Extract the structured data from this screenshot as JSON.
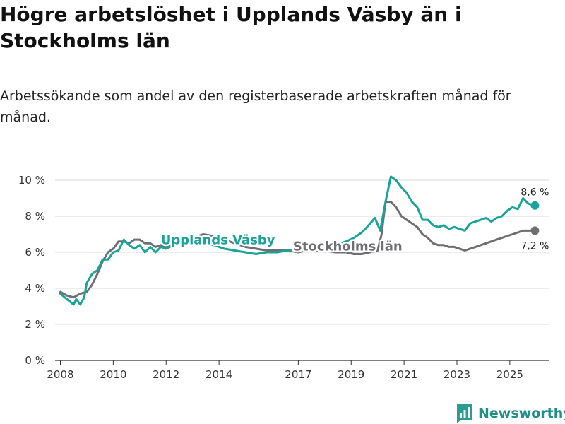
{
  "title": "Högre arbetslöshet i Upplands Väsby än i Stockholms län",
  "subtitle": "Arbetssökande som andel av den registerbaserade arbetskraften månad för månad.",
  "brand": {
    "name": "Newsworthy",
    "icon": "newsworthy-logo-icon",
    "color": "#2a9d92"
  },
  "chart_data": {
    "type": "line",
    "title": "Högre arbetslöshet i Upplands Väsby än i Stockholms län",
    "subtitle": "Arbetssökande som andel av den registerbaserade arbetskraften månad för månad.",
    "xlabel": "",
    "ylabel": "",
    "ylim": [
      0,
      10
    ],
    "xlim": [
      2007.8,
      2026.5
    ],
    "y_ticks": [
      0,
      2,
      4,
      6,
      8,
      10
    ],
    "y_tick_labels": [
      "0 %",
      "2 %",
      "4 %",
      "6 %",
      "8 %",
      "10 %"
    ],
    "x_ticks": [
      2008,
      2010,
      2012,
      2014,
      2017,
      2019,
      2021,
      2023,
      2025
    ],
    "x_tick_labels": [
      "2008",
      "2010",
      "2012",
      "2014",
      "2017",
      "2019",
      "2021",
      "2023",
      "2025"
    ],
    "grid": true,
    "series": [
      {
        "name": "Upplands Väsby",
        "color": "#1aa39a",
        "label_at": [
          2011.8,
          6.45
        ],
        "end_label": "8,6 %",
        "end_value": 8.6,
        "x": [
          2008.0,
          2008.25,
          2008.5,
          2008.6,
          2008.75,
          2008.9,
          2009.0,
          2009.2,
          2009.4,
          2009.6,
          2009.8,
          2010.0,
          2010.2,
          2010.4,
          2010.6,
          2010.8,
          2011.0,
          2011.2,
          2011.4,
          2011.6,
          2011.8,
          2012.0,
          2012.3,
          2012.6,
          2013.0,
          2013.4,
          2013.8,
          2014.2,
          2014.6,
          2015.0,
          2015.4,
          2015.8,
          2016.2,
          2016.6,
          2017.0,
          2017.3,
          2017.6,
          2018.0,
          2018.4,
          2018.8,
          2019.1,
          2019.4,
          2019.6,
          2019.9,
          2020.1,
          2020.3,
          2020.5,
          2020.7,
          2020.9,
          2021.1,
          2021.3,
          2021.5,
          2021.7,
          2021.9,
          2022.1,
          2022.3,
          2022.5,
          2022.7,
          2022.9,
          2023.1,
          2023.3,
          2023.5,
          2023.7,
          2023.9,
          2024.1,
          2024.3,
          2024.5,
          2024.7,
          2024.9,
          2025.1,
          2025.3,
          2025.5,
          2025.7,
          2025.95
        ],
        "values": [
          3.7,
          3.4,
          3.1,
          3.4,
          3.1,
          3.5,
          4.3,
          4.8,
          5.0,
          5.6,
          5.6,
          6.0,
          6.1,
          6.7,
          6.4,
          6.2,
          6.4,
          6.0,
          6.3,
          6.0,
          6.3,
          6.2,
          6.4,
          6.5,
          6.7,
          6.5,
          6.4,
          6.2,
          6.1,
          6.0,
          5.9,
          6.0,
          6.0,
          6.1,
          6.2,
          6.2,
          6.1,
          6.3,
          6.4,
          6.6,
          6.8,
          7.1,
          7.4,
          7.9,
          7.2,
          8.8,
          10.2,
          10.0,
          9.6,
          9.3,
          8.8,
          8.5,
          7.8,
          7.8,
          7.5,
          7.4,
          7.5,
          7.3,
          7.4,
          7.3,
          7.2,
          7.6,
          7.7,
          7.8,
          7.9,
          7.7,
          7.9,
          8.0,
          8.3,
          8.5,
          8.4,
          9.0,
          8.7,
          8.6
        ]
      },
      {
        "name": "Stockholms län",
        "color": "#6f6f73",
        "label_at": [
          2016.8,
          6.1
        ],
        "end_label": "7,2 %",
        "end_value": 7.2,
        "x": [
          2008.0,
          2008.25,
          2008.5,
          2008.75,
          2009.0,
          2009.2,
          2009.4,
          2009.6,
          2009.8,
          2010.0,
          2010.2,
          2010.4,
          2010.6,
          2010.8,
          2011.0,
          2011.2,
          2011.4,
          2011.6,
          2011.8,
          2012.0,
          2012.3,
          2012.6,
          2013.0,
          2013.4,
          2013.8,
          2014.2,
          2014.6,
          2015.0,
          2015.4,
          2015.8,
          2016.2,
          2016.6,
          2017.0,
          2017.3,
          2017.6,
          2018.0,
          2018.4,
          2018.8,
          2019.1,
          2019.4,
          2019.7,
          2020.0,
          2020.15,
          2020.3,
          2020.5,
          2020.7,
          2020.9,
          2021.1,
          2021.3,
          2021.5,
          2021.7,
          2021.9,
          2022.1,
          2022.3,
          2022.5,
          2022.7,
          2022.9,
          2023.1,
          2023.3,
          2023.5,
          2023.7,
          2023.9,
          2024.1,
          2024.3,
          2024.5,
          2024.7,
          2024.9,
          2025.1,
          2025.3,
          2025.5,
          2025.7,
          2025.95
        ],
        "values": [
          3.8,
          3.6,
          3.5,
          3.7,
          3.8,
          4.2,
          4.8,
          5.5,
          6.0,
          6.2,
          6.6,
          6.6,
          6.5,
          6.7,
          6.7,
          6.5,
          6.5,
          6.3,
          6.4,
          6.3,
          6.5,
          6.6,
          6.8,
          7.0,
          6.9,
          6.7,
          6.5,
          6.3,
          6.2,
          6.1,
          6.1,
          6.1,
          6.0,
          6.1,
          6.1,
          6.1,
          6.0,
          6.0,
          5.9,
          5.9,
          6.0,
          6.1,
          7.0,
          8.8,
          8.8,
          8.5,
          8.0,
          7.8,
          7.6,
          7.4,
          7.0,
          6.8,
          6.5,
          6.4,
          6.4,
          6.3,
          6.3,
          6.2,
          6.1,
          6.2,
          6.3,
          6.4,
          6.5,
          6.6,
          6.7,
          6.8,
          6.9,
          7.0,
          7.1,
          7.2,
          7.2,
          7.2
        ]
      }
    ],
    "legend": "inline"
  }
}
